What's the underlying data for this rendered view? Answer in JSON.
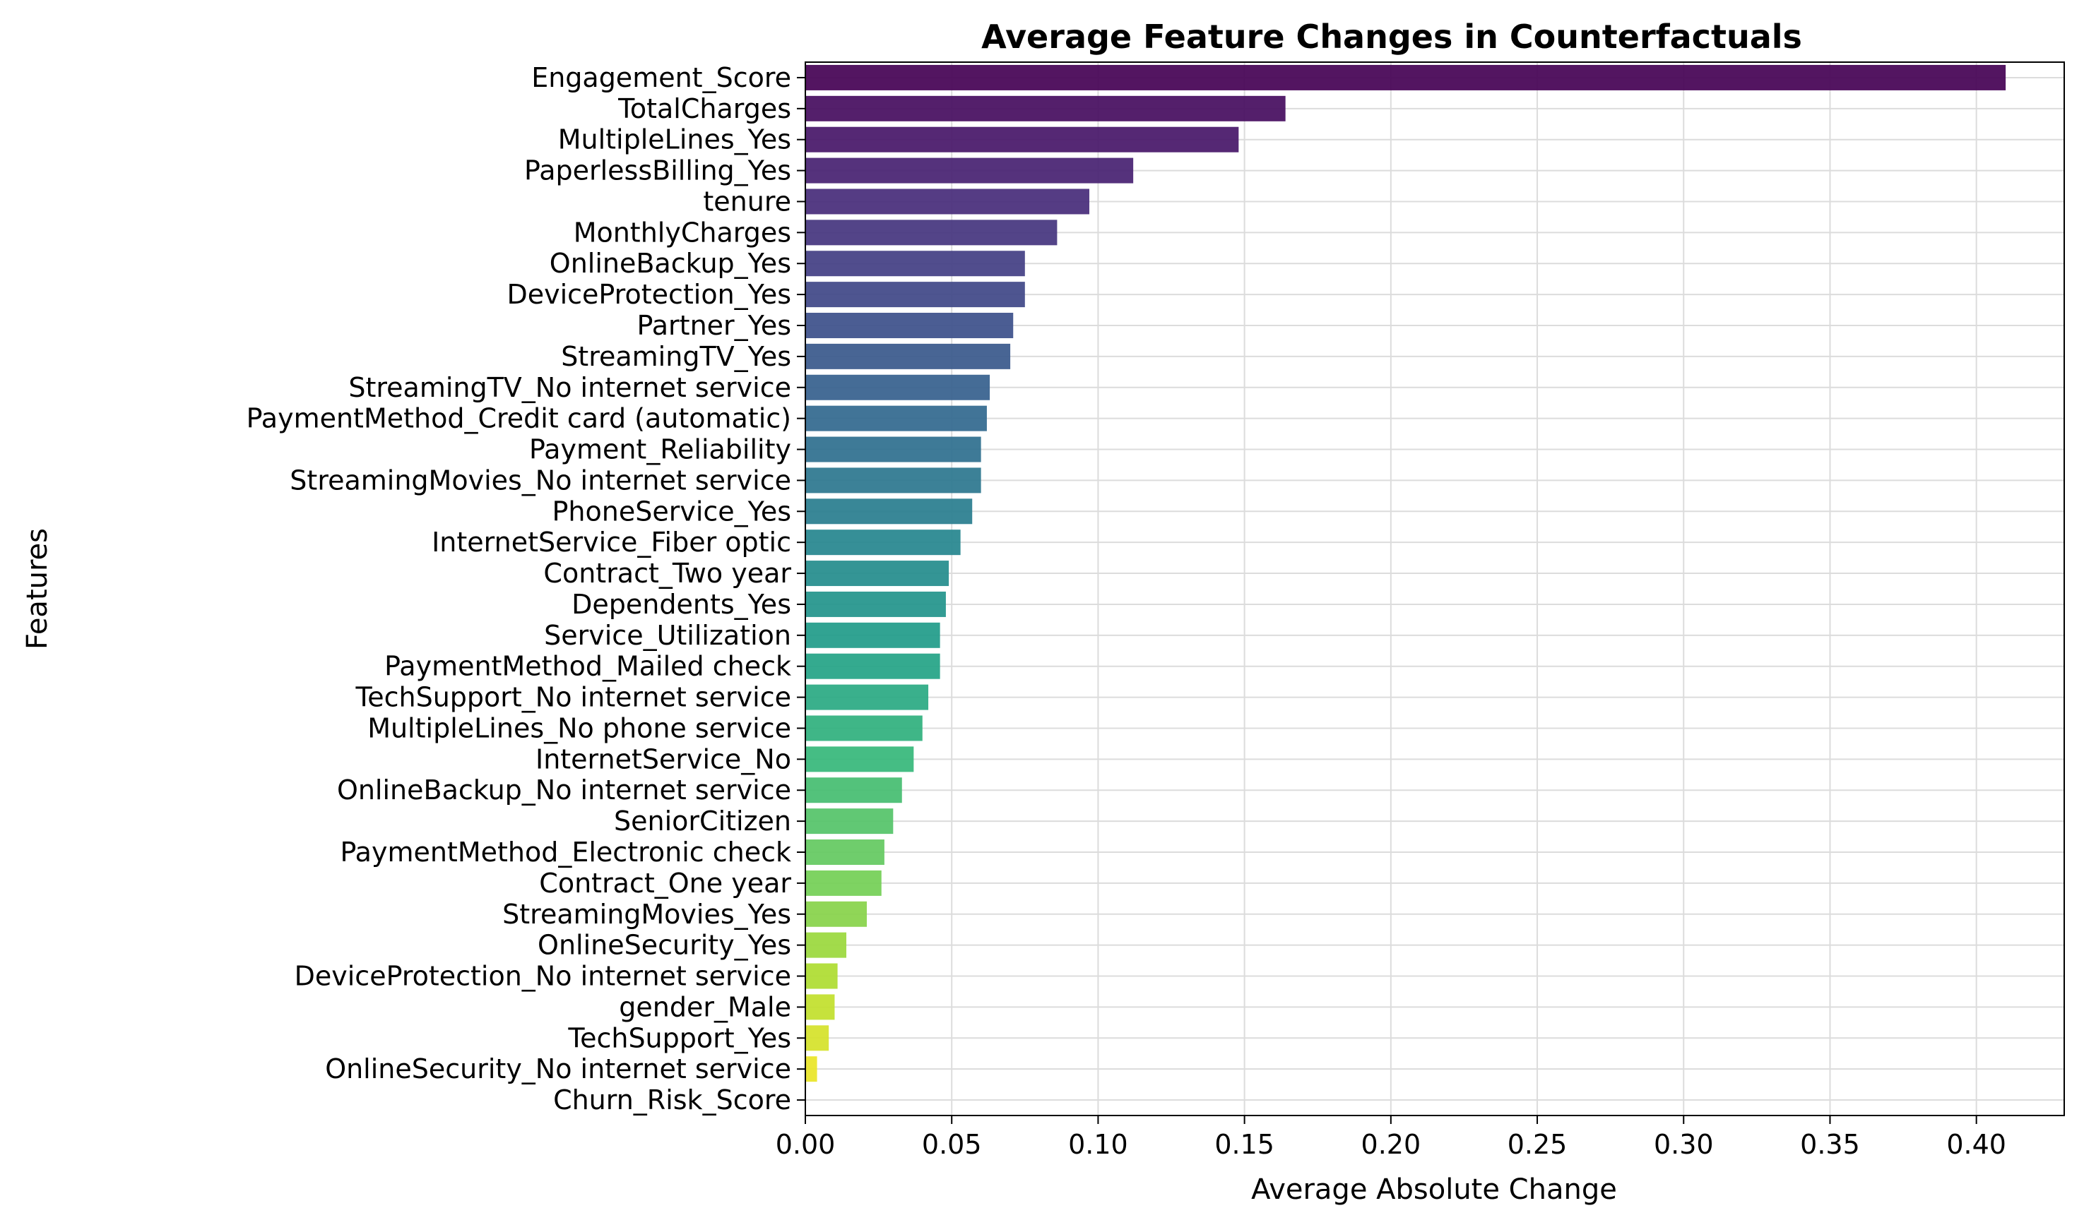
{
  "chart_data": {
    "type": "bar",
    "orientation": "horizontal",
    "title": "Average Feature Changes in Counterfactuals",
    "xlabel": "Average Absolute Change",
    "ylabel": "Features",
    "xlim": [
      0,
      0.43
    ],
    "xticks": [
      "0.00",
      "0.05",
      "0.10",
      "0.15",
      "0.20",
      "0.25",
      "0.30",
      "0.35",
      "0.40"
    ],
    "grid": true,
    "colormap": "viridis",
    "categories": [
      "Engagement_Score",
      "TotalCharges",
      "MultipleLines_Yes",
      "PaperlessBilling_Yes",
      "tenure",
      "MonthlyCharges",
      "OnlineBackup_Yes",
      "DeviceProtection_Yes",
      "Partner_Yes",
      "StreamingTV_Yes",
      "StreamingTV_No internet service",
      "PaymentMethod_Credit card (automatic)",
      "Payment_Reliability",
      "StreamingMovies_No internet service",
      "PhoneService_Yes",
      "InternetService_Fiber optic",
      "Contract_Two year",
      "Dependents_Yes",
      "Service_Utilization",
      "PaymentMethod_Mailed check",
      "TechSupport_No internet service",
      "MultipleLines_No phone service",
      "InternetService_No",
      "OnlineBackup_No internet service",
      "SeniorCitizen",
      "PaymentMethod_Electronic check",
      "Contract_One year",
      "StreamingMovies_Yes",
      "OnlineSecurity_Yes",
      "DeviceProtection_No internet service",
      "gender_Male",
      "TechSupport_Yes",
      "OnlineSecurity_No internet service",
      "Churn_Risk_Score"
    ],
    "values": [
      0.41,
      0.164,
      0.148,
      0.112,
      0.097,
      0.086,
      0.075,
      0.075,
      0.071,
      0.07,
      0.063,
      0.062,
      0.06,
      0.06,
      0.057,
      0.053,
      0.049,
      0.048,
      0.046,
      0.046,
      0.042,
      0.04,
      0.037,
      0.033,
      0.03,
      0.027,
      0.026,
      0.021,
      0.014,
      0.011,
      0.01,
      0.008,
      0.004,
      0.0
    ]
  }
}
